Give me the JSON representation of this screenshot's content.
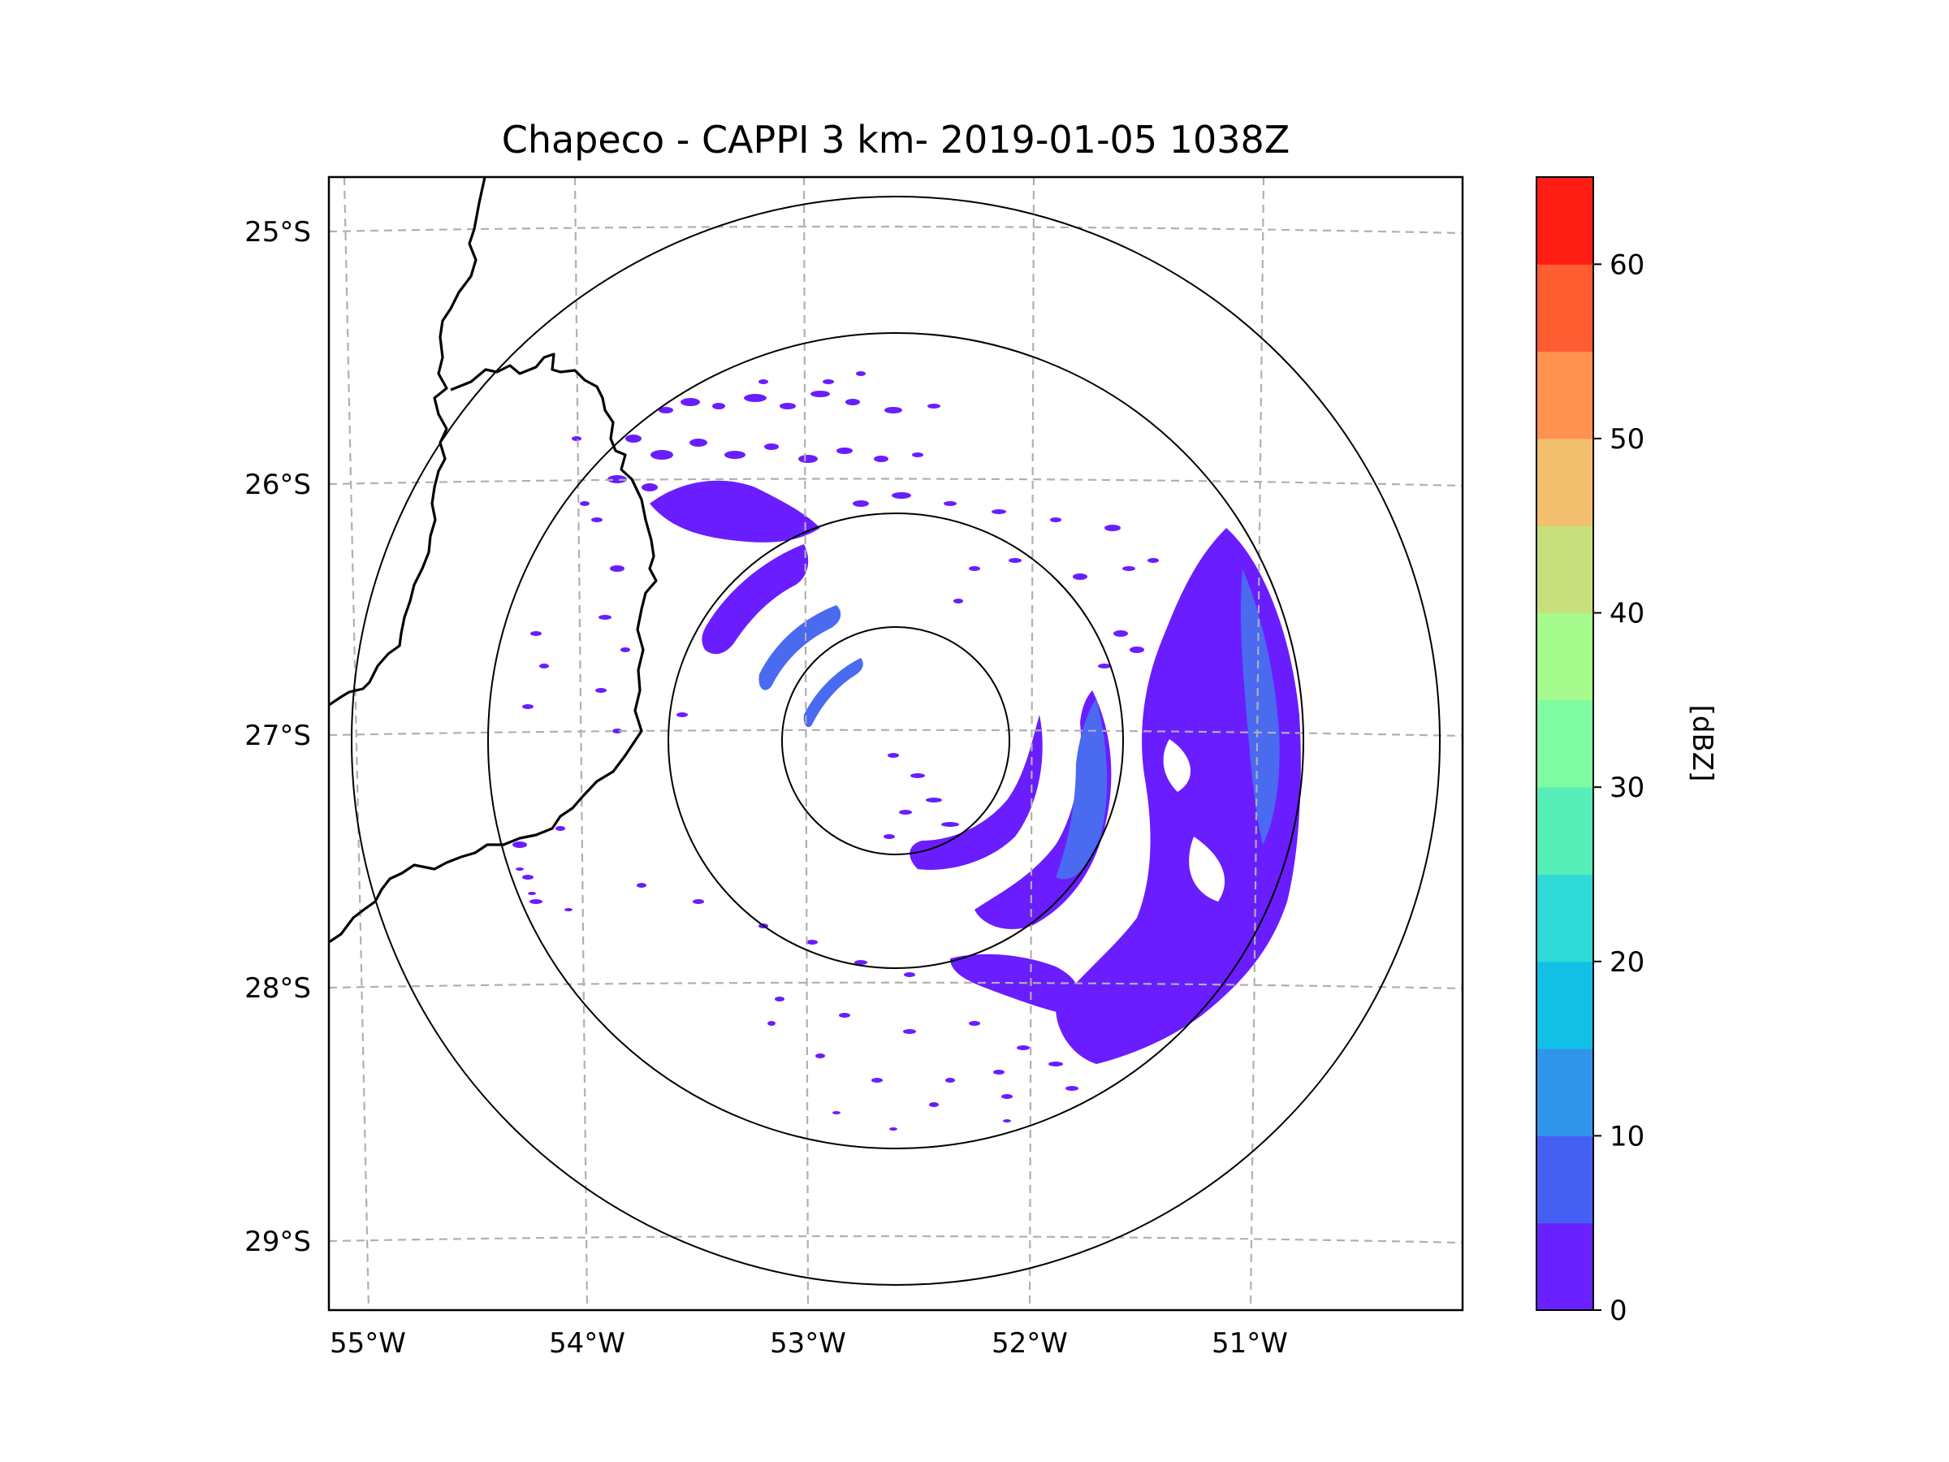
{
  "title": "Chapeco - CAPPI 3 km- 2019-01-05 1038Z",
  "map": {
    "lat_labels": [
      "25°S",
      "26°S",
      "27°S",
      "28°S",
      "29°S"
    ],
    "lon_labels": [
      "55°W",
      "54°W",
      "53°W",
      "52°W",
      "51°W"
    ],
    "radar_name": "Chapeco",
    "product": "CAPPI 3 km",
    "colors": {
      "gridline": "#b0b0b0",
      "coast": "#000000",
      "range_ring": "#000000",
      "echo_main": "#6a1dff",
      "echo_strong": "#4a6af0"
    }
  },
  "colorbar": {
    "label": "[dBZ]",
    "tick_labels": [
      "0",
      "10",
      "20",
      "30",
      "40",
      "50",
      "60"
    ],
    "levels": [
      0,
      5,
      10,
      15,
      20,
      25,
      30,
      35,
      40,
      45,
      50,
      55,
      60,
      65
    ],
    "colors": [
      "#6a21ff",
      "#4360f2",
      "#2f95ea",
      "#12c0e6",
      "#2fdad7",
      "#56eeb9",
      "#7efba3",
      "#a5fb8c",
      "#c8e07c",
      "#f2c06e",
      "#ff9251",
      "#ff5c32",
      "#ff1d14"
    ]
  }
}
